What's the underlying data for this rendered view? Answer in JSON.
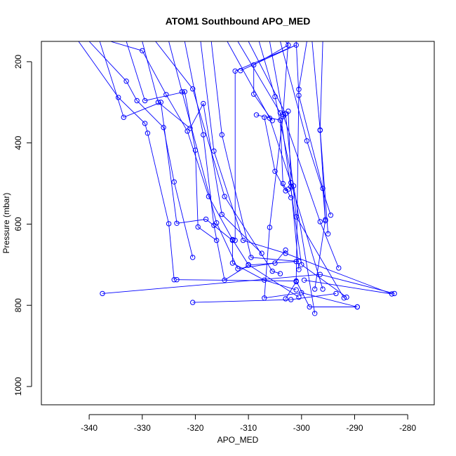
{
  "chart_data": {
    "type": "scatter",
    "title": "ATOM1 Southbound APO_MED",
    "xlabel": "APO_MED",
    "ylabel": "Pressure (mbar)",
    "xlim": [
      -349,
      -275
    ],
    "ylim": [
      1045,
      150
    ],
    "y_reversed": true,
    "xticks": [
      -340,
      -330,
      -320,
      -310,
      -300,
      -290,
      -280
    ],
    "yticks": [
      200,
      400,
      600,
      800,
      1000
    ],
    "color": "#0000ff",
    "grid": false,
    "series": [
      {
        "x": [
          -342,
          -334.5,
          -329.5,
          -329,
          -325,
          -324
        ],
        "y": [
          150,
          288,
          352,
          376,
          599,
          737
        ]
      },
      {
        "x": [
          -340,
          -333,
          -331,
          -326,
          -324,
          -320.5
        ],
        "y": [
          150,
          248,
          296,
          362,
          496,
          682
        ]
      },
      {
        "x": [
          -338,
          -333.5,
          -326.5,
          -323.5,
          -318,
          -313,
          -313,
          -307,
          -301
        ],
        "y": [
          150,
          337,
          300,
          598,
          588,
          640,
          696,
          738,
          762
        ]
      },
      {
        "x": [
          -336,
          -330,
          -325.5,
          -321.5,
          -317.5,
          -313,
          -310,
          -300.5
        ],
        "y": [
          150,
          173,
          281,
          371,
          532,
          638,
          700,
          780
        ]
      },
      {
        "x": [
          -333,
          -329.5,
          -322,
          -320,
          -319.5,
          -316
        ],
        "y": [
          150,
          296,
          274,
          418,
          607,
          640
        ]
      },
      {
        "x": [
          -330,
          -327,
          -321,
          -318.5,
          -315,
          -307.5
        ],
        "y": [
          150,
          300,
          364,
          303,
          576,
          672
        ]
      },
      {
        "x": [
          -327.5,
          -320.5,
          -314.5,
          -305.5,
          -304
        ],
        "y": [
          150,
          267,
          532,
          716,
          722
        ]
      },
      {
        "x": [
          -325,
          -322.5,
          -316,
          -312,
          -305,
          -303
        ],
        "y": [
          150,
          274,
          597,
          710,
          696,
          664
        ]
      },
      {
        "x": [
          -322,
          -318.5,
          -316.5,
          -314.5,
          -310,
          -301
        ],
        "y": [
          150,
          380,
          603,
          738,
          701,
          692
        ]
      },
      {
        "x": [
          -319,
          -316.5,
          -311,
          -303,
          -283,
          -299.5
        ],
        "y": [
          150,
          420,
          640,
          672,
          772,
          738
        ]
      },
      {
        "x": [
          -317,
          -315,
          -309.5,
          -300.5
        ],
        "y": [
          150,
          380,
          682,
          692
        ]
      },
      {
        "x": [
          -314,
          -306,
          -302,
          -296
        ],
        "y": [
          150,
          339,
          498,
          760
        ]
      },
      {
        "x": [
          -312,
          -304,
          -300,
          -291.5
        ],
        "y": [
          150,
          326,
          700,
          780
        ]
      },
      {
        "x": [
          -310,
          -303,
          -301,
          -292
        ],
        "y": [
          150,
          328,
          582,
          782
        ]
      },
      {
        "x": [
          -308,
          -305,
          -301.5,
          -297.5
        ],
        "y": [
          150,
          286,
          506,
          820
        ]
      },
      {
        "x": [
          -306,
          -303.5,
          -296.5,
          -293
        ],
        "y": [
          150,
          330,
          594,
          708
        ]
      },
      {
        "x": [
          -304,
          -299,
          -294.5
        ],
        "y": [
          150,
          395,
          578
        ]
      },
      {
        "x": [
          -303,
          -302.5,
          -309,
          -309,
          -305.5
        ],
        "y": [
          150,
          159,
          208,
          280,
          345
        ]
      },
      {
        "x": [
          -301,
          -300.5,
          -296,
          -295.5
        ],
        "y": [
          150,
          283,
          512,
          592
        ]
      },
      {
        "x": [
          -298,
          -296.5,
          -295
        ],
        "y": [
          150,
          368,
          624
        ]
      },
      {
        "x": [
          -296,
          -296.5,
          -295.5,
          -297.5
        ],
        "y": [
          150,
          369,
          589,
          760
        ]
      },
      {
        "x": [
          -311.5,
          -301,
          -312.5,
          -312.5
        ],
        "y": [
          222,
          159,
          223,
          640
        ]
      },
      {
        "x": [
          -299,
          -300.5,
          -301,
          -303
        ],
        "y": [
          150,
          268,
          742,
          784
        ]
      },
      {
        "x": [
          -302.5,
          -303.5,
          -306,
          -307,
          -300,
          -289.5
        ],
        "y": [
          150,
          335,
          608,
          782,
          769,
          804
        ]
      },
      {
        "x": [
          -337.5,
          -296.5,
          -282.5
        ],
        "y": [
          771,
          724,
          771
        ]
      },
      {
        "x": [
          -320.5,
          -302,
          -293.5
        ],
        "y": [
          793,
          786,
          771
        ]
      },
      {
        "x": [
          -323.5,
          -301,
          -298.5,
          -289.5
        ],
        "y": [
          737,
          740,
          804,
          804
        ]
      },
      {
        "x": [
          -308.5,
          -304,
          -303.5,
          -302
        ],
        "y": [
          331,
          344,
          500,
          535
        ]
      },
      {
        "x": [
          -307,
          -305,
          -303,
          -302.5
        ],
        "y": [
          337,
          470,
          518,
          514
        ]
      },
      {
        "x": [
          -302.5,
          -302,
          -300.5
        ],
        "y": [
          322,
          508,
          712
        ]
      }
    ]
  }
}
